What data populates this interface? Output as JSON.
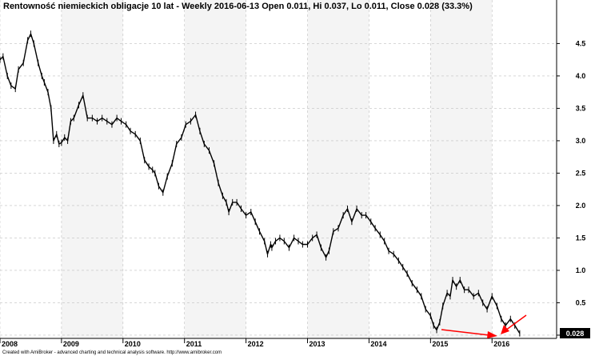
{
  "colors": {
    "background": "#ffffff",
    "alt_band": "#f4f4f4",
    "grid": "#c0c0c0",
    "price": "#000000",
    "annotation": "#ff0000"
  },
  "chart_data": {
    "type": "ohlc",
    "title": "Rentowność niemieckich obligacje 10 lat - Weekly 2016-06-13 Open 0.011, Hi 0.037, Lo 0.011, Close 0.028 (33.3%)",
    "footer": "Created with AmiBroker - advanced charting and technical analysis software. http://www.amibroker.com",
    "last_value_label": "0.028",
    "y_axis": {
      "range": [
        -0.05,
        4.9
      ],
      "ticks": [
        "0",
        "0.5",
        "1.0",
        "1.5",
        "2.0",
        "2.5",
        "3.0",
        "3.5",
        "4.0",
        "4.5"
      ],
      "position": "right"
    },
    "x_axis": {
      "range": [
        2008.0,
        2017.05
      ],
      "ticks": [
        "2008",
        "2009",
        "2010",
        "2011",
        "2012",
        "2013",
        "2014",
        "2015",
        "2016"
      ]
    },
    "grid": true,
    "x": [
      2008.0,
      2008.05,
      2008.12,
      2008.18,
      2008.25,
      2008.3,
      2008.38,
      2008.45,
      2008.5,
      2008.55,
      2008.62,
      2008.68,
      2008.72,
      2008.78,
      2008.83,
      2008.87,
      2008.92,
      2008.96,
      2009.0,
      2009.05,
      2009.1,
      2009.15,
      2009.2,
      2009.28,
      2009.35,
      2009.42,
      2009.5,
      2009.58,
      2009.66,
      2009.74,
      2009.82,
      2009.9,
      2009.97,
      2010.05,
      2010.12,
      2010.2,
      2010.28,
      2010.35,
      2010.42,
      2010.48,
      2010.52,
      2010.58,
      2010.65,
      2010.72,
      2010.8,
      2010.87,
      2010.95,
      2011.02,
      2011.1,
      2011.18,
      2011.25,
      2011.32,
      2011.4,
      2011.48,
      2011.55,
      2011.62,
      2011.68,
      2011.72,
      2011.78,
      2011.85,
      2011.92,
      2012.0,
      2012.08,
      2012.15,
      2012.22,
      2012.3,
      2012.35,
      2012.4,
      2012.42,
      2012.48,
      2012.55,
      2012.62,
      2012.7,
      2012.78,
      2012.85,
      2012.92,
      2013.0,
      2013.08,
      2013.15,
      2013.22,
      2013.3,
      2013.35,
      2013.42,
      2013.5,
      2013.58,
      2013.65,
      2013.72,
      2013.8,
      2013.88,
      2013.95,
      2014.03,
      2014.1,
      2014.18,
      2014.25,
      2014.32,
      2014.4,
      2014.48,
      2014.55,
      2014.62,
      2014.7,
      2014.78,
      2014.85,
      2014.92,
      2015.0,
      2015.05,
      2015.1,
      2015.15,
      2015.2,
      2015.27,
      2015.32,
      2015.36,
      2015.42,
      2015.48,
      2015.55,
      2015.62,
      2015.7,
      2015.78,
      2015.85,
      2015.92,
      2016.0,
      2016.08,
      2016.15,
      2016.22,
      2016.3,
      2016.37,
      2016.45
    ],
    "values": [
      4.25,
      4.3,
      4.0,
      3.85,
      3.8,
      4.1,
      4.2,
      4.55,
      4.65,
      4.5,
      4.2,
      4.0,
      3.9,
      3.75,
      3.5,
      3.0,
      3.1,
      2.95,
      2.97,
      3.05,
      3.0,
      3.3,
      3.35,
      3.55,
      3.7,
      3.35,
      3.35,
      3.3,
      3.35,
      3.3,
      3.25,
      3.35,
      3.3,
      3.25,
      3.15,
      3.1,
      3.0,
      2.7,
      2.6,
      2.55,
      2.5,
      2.3,
      2.2,
      2.45,
      2.65,
      2.95,
      3.05,
      3.25,
      3.3,
      3.4,
      3.15,
      2.95,
      2.85,
      2.65,
      2.35,
      2.15,
      2.05,
      1.9,
      2.05,
      2.05,
      1.95,
      1.85,
      1.9,
      1.75,
      1.6,
      1.45,
      1.25,
      1.4,
      1.35,
      1.45,
      1.5,
      1.45,
      1.35,
      1.5,
      1.45,
      1.4,
      1.4,
      1.5,
      1.55,
      1.35,
      1.2,
      1.3,
      1.6,
      1.65,
      1.85,
      1.95,
      1.75,
      1.95,
      1.85,
      1.85,
      1.75,
      1.65,
      1.55,
      1.45,
      1.3,
      1.25,
      1.15,
      1.05,
      0.95,
      0.8,
      0.7,
      0.6,
      0.4,
      0.3,
      0.15,
      0.08,
      0.2,
      0.45,
      0.65,
      0.6,
      0.85,
      0.75,
      0.85,
      0.7,
      0.7,
      0.6,
      0.65,
      0.5,
      0.4,
      0.6,
      0.45,
      0.25,
      0.15,
      0.25,
      0.15,
      0.028
    ]
  }
}
